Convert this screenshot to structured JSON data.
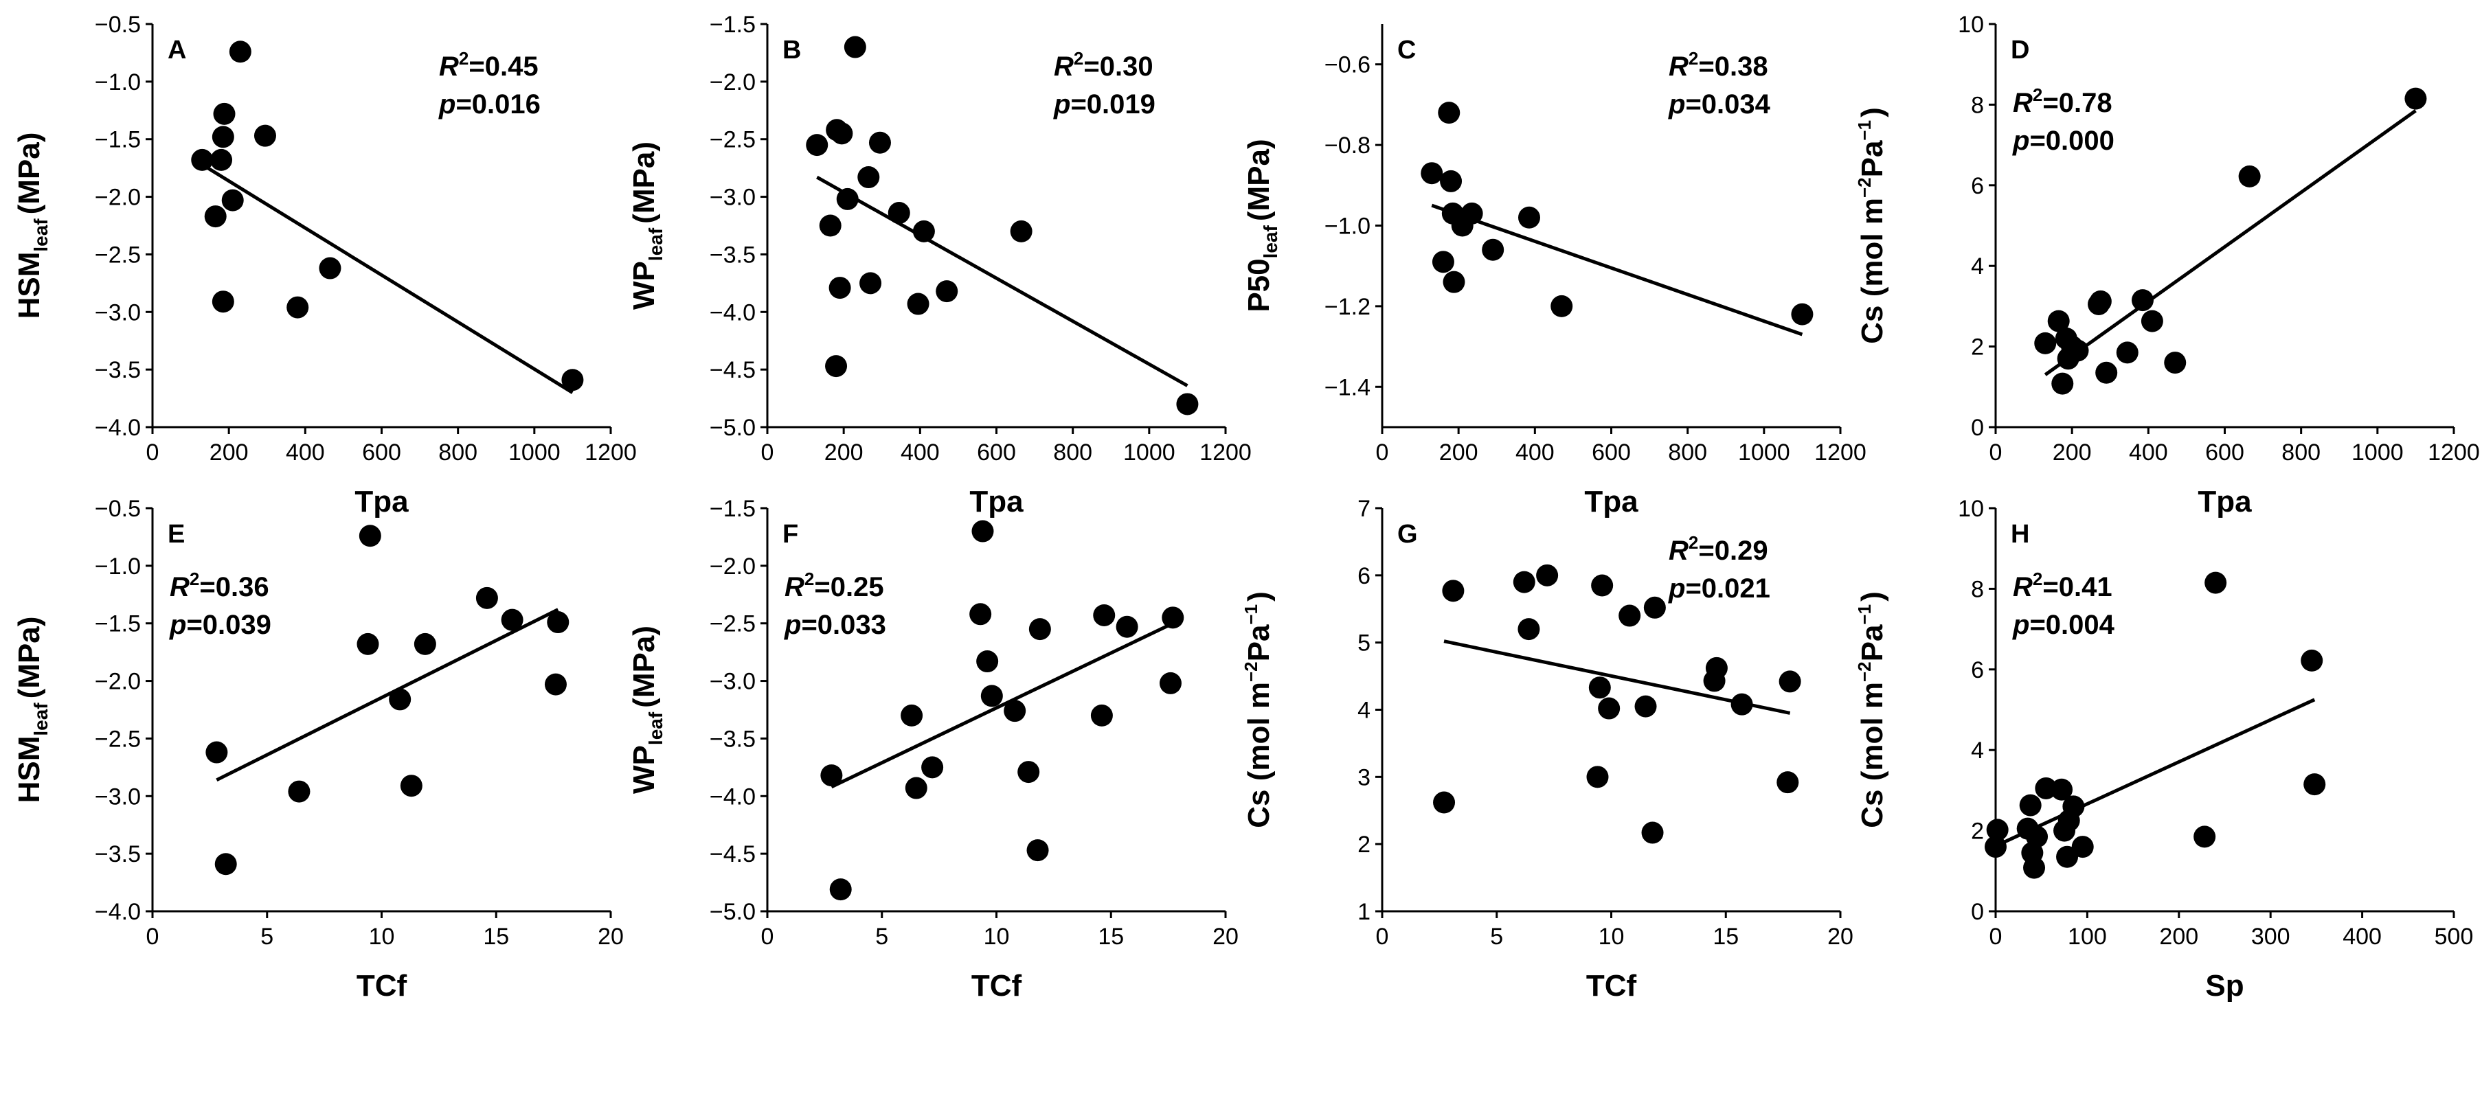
{
  "chart_data": [
    {
      "type": "scatter",
      "panel": "A",
      "xlabel": "Tpa",
      "ylabel": {
        "main": "HSM",
        "sub": "leaf",
        "unit": "(MPa)"
      },
      "xlim": [
        0,
        1200
      ],
      "ylim": [
        -4.0,
        -0.5
      ],
      "xticks": [
        0,
        200,
        400,
        600,
        800,
        1000,
        1200
      ],
      "xtick_labels": [
        "0",
        "200",
        "400",
        "600",
        "800",
        "1000",
        "1200"
      ],
      "yticks": [
        -4.0,
        -3.5,
        -3.0,
        -2.5,
        -2.0,
        -1.5,
        -1.0,
        -0.5
      ],
      "ytick_labels": [
        "−4.0",
        "−3.5",
        "−3.0",
        "−2.5",
        "−2.0",
        "−1.5",
        "−1.0",
        "−0.5"
      ],
      "points": [
        [
          130,
          -1.68
        ],
        [
          165,
          -2.17
        ],
        [
          180,
          -1.68
        ],
        [
          185,
          -2.91
        ],
        [
          185,
          -1.48
        ],
        [
          188,
          -1.28
        ],
        [
          210,
          -2.03
        ],
        [
          230,
          -0.74
        ],
        [
          295,
          -1.47
        ],
        [
          380,
          -2.96
        ],
        [
          465,
          -2.62
        ],
        [
          1100,
          -3.59
        ]
      ],
      "fit": [
        [
          130,
          -1.72
        ],
        [
          1100,
          -3.7
        ]
      ],
      "stats": {
        "r2_label": "R",
        "r2_sup": "2",
        "r2_value": "=0.45",
        "p_label": "p",
        "p_value": "=0.016"
      },
      "stats_pos": "top-right"
    },
    {
      "type": "scatter",
      "panel": "B",
      "xlabel": "Tpa",
      "ylabel": {
        "main": "WP",
        "sub": "leaf",
        "unit": "(MPa)"
      },
      "xlim": [
        0,
        1200
      ],
      "ylim": [
        -5.0,
        -1.5
      ],
      "xticks": [
        0,
        200,
        400,
        600,
        800,
        1000,
        1200
      ],
      "xtick_labels": [
        "0",
        "200",
        "400",
        "600",
        "800",
        "1000",
        "1200"
      ],
      "yticks": [
        -5.0,
        -4.5,
        -4.0,
        -3.5,
        -3.0,
        -2.5,
        -2.0,
        -1.5
      ],
      "ytick_labels": [
        "−5.0",
        "−4.5",
        "−4.0",
        "−3.5",
        "−3.0",
        "−2.5",
        "−2.0",
        "−1.5"
      ],
      "points": [
        [
          130,
          -2.55
        ],
        [
          165,
          -3.25
        ],
        [
          180,
          -4.47
        ],
        [
          182,
          -2.42
        ],
        [
          190,
          -3.79
        ],
        [
          195,
          -2.45
        ],
        [
          210,
          -3.02
        ],
        [
          230,
          -1.7
        ],
        [
          265,
          -2.83
        ],
        [
          270,
          -3.75
        ],
        [
          295,
          -2.53
        ],
        [
          345,
          -3.14
        ],
        [
          395,
          -3.93
        ],
        [
          410,
          -3.3
        ],
        [
          470,
          -3.82
        ],
        [
          665,
          -3.3
        ],
        [
          1100,
          -4.8
        ]
      ],
      "fit": [
        [
          130,
          -2.83
        ],
        [
          1100,
          -4.64
        ]
      ],
      "stats": {
        "r2_label": "R",
        "r2_sup": "2",
        "r2_value": "=0.30",
        "p_label": "p",
        "p_value": "=0.019"
      },
      "stats_pos": "top-right"
    },
    {
      "type": "scatter",
      "panel": "C",
      "xlabel": "Tpa",
      "ylabel": {
        "main": "P50",
        "sub": "leaf",
        "unit": "(MPa)"
      },
      "xlim": [
        0,
        1200
      ],
      "ylim": [
        -1.5,
        -0.5
      ],
      "xticks": [
        0,
        200,
        400,
        600,
        800,
        1000,
        1200
      ],
      "xtick_labels": [
        "0",
        "200",
        "400",
        "600",
        "800",
        "1000",
        "1200"
      ],
      "yticks": [
        -1.4,
        -1.2,
        -1.0,
        -0.8,
        -0.6
      ],
      "ytick_labels": [
        "−1.4",
        "−1.2",
        "−1.0",
        "−0.8",
        "−0.6"
      ],
      "points": [
        [
          130,
          -0.87
        ],
        [
          160,
          -1.09
        ],
        [
          175,
          -0.72
        ],
        [
          180,
          -0.89
        ],
        [
          185,
          -0.97
        ],
        [
          188,
          -1.14
        ],
        [
          210,
          -1.0
        ],
        [
          235,
          -0.97
        ],
        [
          290,
          -1.06
        ],
        [
          385,
          -0.98
        ],
        [
          470,
          -1.2
        ],
        [
          1100,
          -1.22
        ]
      ],
      "fit": [
        [
          130,
          -0.95
        ],
        [
          1100,
          -1.27
        ]
      ],
      "stats": {
        "r2_label": "R",
        "r2_sup": "2",
        "r2_value": "=0.38",
        "p_label": "p",
        "p_value": "=0.034"
      },
      "stats_pos": "top-right"
    },
    {
      "type": "scatter",
      "panel": "D",
      "xlabel": "Tpa",
      "ylabel": {
        "main": "Cs (mol m",
        "sup1": "−2",
        "mid": "Pa",
        "sup2": "−1",
        "end": ")"
      },
      "xlim": [
        0,
        1200
      ],
      "ylim": [
        0,
        10
      ],
      "xticks": [
        0,
        200,
        400,
        600,
        800,
        1000,
        1200
      ],
      "xtick_labels": [
        "0",
        "200",
        "400",
        "600",
        "800",
        "1000",
        "1200"
      ],
      "yticks": [
        0,
        2,
        4,
        6,
        8,
        10
      ],
      "ytick_labels": [
        "0",
        "2",
        "4",
        "6",
        "8",
        "10"
      ],
      "points": [
        [
          130,
          2.08
        ],
        [
          165,
          2.63
        ],
        [
          175,
          1.08
        ],
        [
          185,
          2.2
        ],
        [
          190,
          1.7
        ],
        [
          200,
          2.0
        ],
        [
          215,
          1.9
        ],
        [
          270,
          3.05
        ],
        [
          275,
          3.12
        ],
        [
          290,
          1.35
        ],
        [
          345,
          1.85
        ],
        [
          385,
          3.15
        ],
        [
          410,
          2.63
        ],
        [
          470,
          1.6
        ],
        [
          665,
          6.22
        ],
        [
          1100,
          8.15
        ]
      ],
      "fit": [
        [
          130,
          1.3
        ],
        [
          1100,
          7.85
        ]
      ],
      "stats": {
        "r2_label": "R",
        "r2_sup": "2",
        "r2_value": "=0.78",
        "p_label": "p",
        "p_value": "=0.000"
      },
      "stats_pos": "top-left"
    },
    {
      "type": "scatter",
      "panel": "E",
      "xlabel": "TCf",
      "ylabel": {
        "main": "HSM",
        "sub": "leaf",
        "unit": "(MPa)"
      },
      "xlim": [
        0,
        20
      ],
      "ylim": [
        -4.0,
        -0.5
      ],
      "xticks": [
        0,
        5,
        10,
        15,
        20
      ],
      "xtick_labels": [
        "0",
        "5",
        "10",
        "15",
        "20"
      ],
      "yticks": [
        -4.0,
        -3.5,
        -3.0,
        -2.5,
        -2.0,
        -1.5,
        -1.0,
        -0.5
      ],
      "ytick_labels": [
        "−4.0",
        "−3.5",
        "−3.0",
        "−2.5",
        "−2.0",
        "−1.5",
        "−1.0",
        "−0.5"
      ],
      "points": [
        [
          2.8,
          -2.62
        ],
        [
          3.2,
          -3.59
        ],
        [
          6.4,
          -2.96
        ],
        [
          9.4,
          -1.68
        ],
        [
          9.5,
          -0.74
        ],
        [
          10.8,
          -2.16
        ],
        [
          11.3,
          -2.91
        ],
        [
          11.9,
          -1.68
        ],
        [
          14.6,
          -1.28
        ],
        [
          15.7,
          -1.47
        ],
        [
          17.6,
          -2.03
        ],
        [
          17.7,
          -1.49
        ]
      ],
      "fit": [
        [
          2.8,
          -2.86
        ],
        [
          17.7,
          -1.38
        ]
      ],
      "stats": {
        "r2_label": "R",
        "r2_sup": "2",
        "r2_value": "=0.36",
        "p_label": "p",
        "p_value": "=0.039"
      },
      "stats_pos": "top-left"
    },
    {
      "type": "scatter",
      "panel": "F",
      "xlabel": "TCf",
      "ylabel": {
        "main": "WP",
        "sub": "leaf",
        "unit": "(MPa)"
      },
      "xlim": [
        0,
        20
      ],
      "ylim": [
        -5.0,
        -1.5
      ],
      "xticks": [
        0,
        5,
        10,
        15,
        20
      ],
      "xtick_labels": [
        "0",
        "5",
        "10",
        "15",
        "20"
      ],
      "yticks": [
        -5.0,
        -4.5,
        -4.0,
        -3.5,
        -3.0,
        -2.5,
        -2.0,
        -1.5
      ],
      "ytick_labels": [
        "−5.0",
        "−4.5",
        "−4.0",
        "−3.5",
        "−3.0",
        "−2.5",
        "−2.0",
        "−1.5"
      ],
      "points": [
        [
          2.8,
          -3.82
        ],
        [
          3.2,
          -4.81
        ],
        [
          6.3,
          -3.3
        ],
        [
          6.5,
          -3.93
        ],
        [
          7.2,
          -3.75
        ],
        [
          9.3,
          -2.42
        ],
        [
          9.4,
          -1.7
        ],
        [
          9.6,
          -2.83
        ],
        [
          9.8,
          -3.13
        ],
        [
          10.8,
          -3.26
        ],
        [
          11.4,
          -3.79
        ],
        [
          11.8,
          -4.47
        ],
        [
          11.9,
          -2.55
        ],
        [
          14.6,
          -3.3
        ],
        [
          14.7,
          -2.43
        ],
        [
          15.7,
          -2.53
        ],
        [
          17.6,
          -3.02
        ],
        [
          17.7,
          -2.45
        ]
      ],
      "fit": [
        [
          2.8,
          -3.92
        ],
        [
          17.7,
          -2.5
        ]
      ],
      "stats": {
        "r2_label": "R",
        "r2_sup": "2",
        "r2_value": "=0.25",
        "p_label": "p",
        "p_value": "=0.033"
      },
      "stats_pos": "top-left"
    },
    {
      "type": "scatter",
      "panel": "G",
      "xlabel": "TCf",
      "ylabel": {
        "main": "Cs (mol m",
        "sup1": "−2",
        "mid": "Pa",
        "sup2": "−1",
        "end": ")"
      },
      "xlim": [
        0,
        20
      ],
      "ylim": [
        1,
        7
      ],
      "xticks": [
        0,
        5,
        10,
        15,
        20
      ],
      "xtick_labels": [
        "0",
        "5",
        "10",
        "15",
        "20"
      ],
      "yticks": [
        1,
        2,
        3,
        4,
        5,
        6,
        7
      ],
      "ytick_labels": [
        "1",
        "2",
        "3",
        "4",
        "5",
        "6",
        "7"
      ],
      "points": [
        [
          2.7,
          2.62
        ],
        [
          3.1,
          5.77
        ],
        [
          6.2,
          5.9
        ],
        [
          6.4,
          5.2
        ],
        [
          7.2,
          6.0
        ],
        [
          9.4,
          3.0
        ],
        [
          9.5,
          4.33
        ],
        [
          9.6,
          5.85
        ],
        [
          9.9,
          4.02
        ],
        [
          10.8,
          5.4
        ],
        [
          11.5,
          4.05
        ],
        [
          11.8,
          2.17
        ],
        [
          11.9,
          5.52
        ],
        [
          14.5,
          4.43
        ],
        [
          14.6,
          4.62
        ],
        [
          15.7,
          4.08
        ],
        [
          17.7,
          2.92
        ],
        [
          17.8,
          4.42
        ]
      ],
      "fit": [
        [
          2.7,
          5.02
        ],
        [
          17.8,
          3.95
        ]
      ],
      "stats": {
        "r2_label": "R",
        "r2_sup": "2",
        "r2_value": "=0.29",
        "p_label": "p",
        "p_value": "=0.021"
      },
      "stats_pos": "top-right"
    },
    {
      "type": "scatter",
      "panel": "H",
      "xlabel": "Sp",
      "ylabel": {
        "main": "Cs (mol m",
        "sup1": "−2",
        "mid": "Pa",
        "sup2": "−1",
        "end": ")"
      },
      "xlim": [
        0,
        500
      ],
      "ylim": [
        0,
        10
      ],
      "xticks": [
        0,
        100,
        200,
        300,
        400,
        500
      ],
      "xtick_labels": [
        "0",
        "100",
        "200",
        "300",
        "400",
        "500"
      ],
      "yticks": [
        0,
        2,
        4,
        6,
        8,
        10
      ],
      "ytick_labels": [
        "0",
        "2",
        "4",
        "6",
        "8",
        "10"
      ],
      "points": [
        [
          0,
          1.6
        ],
        [
          2,
          2.02
        ],
        [
          35,
          2.05
        ],
        [
          38,
          2.63
        ],
        [
          40,
          1.45
        ],
        [
          42,
          1.08
        ],
        [
          45,
          1.85
        ],
        [
          55,
          3.05
        ],
        [
          72,
          3.02
        ],
        [
          75,
          2.0
        ],
        [
          78,
          1.35
        ],
        [
          80,
          2.25
        ],
        [
          85,
          2.6
        ],
        [
          95,
          1.6
        ],
        [
          228,
          1.85
        ],
        [
          240,
          8.15
        ],
        [
          345,
          6.22
        ],
        [
          348,
          3.15
        ]
      ],
      "fit": [
        [
          0,
          1.62
        ],
        [
          348,
          5.25
        ]
      ],
      "stats": {
        "r2_label": "R",
        "r2_sup": "2",
        "r2_value": "=0.41",
        "p_label": "p",
        "p_value": "=0.004"
      },
      "stats_pos": "top-left"
    }
  ]
}
